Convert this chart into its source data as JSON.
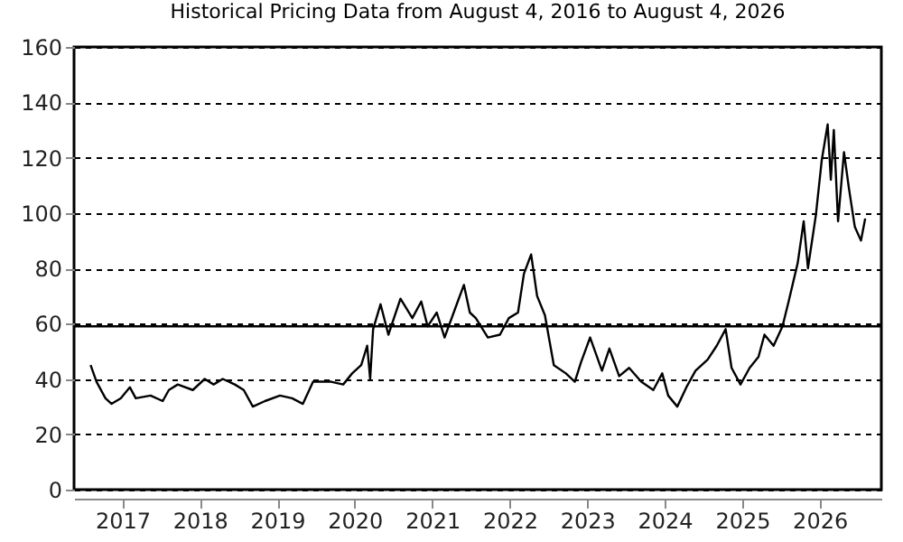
{
  "chart_data": {
    "type": "line",
    "title": "Historical Pricing Data from August 4, 2016 to August 4, 2026",
    "x": [
      "2016-08-04",
      "2016-09-01",
      "2016-10-13",
      "2016-11-11",
      "2016-12-24",
      "2017-02-05",
      "2017-03-05",
      "2017-05-14",
      "2017-07-10",
      "2017-08-08",
      "2017-09-19",
      "2017-11-29",
      "2018-01-24",
      "2018-03-07",
      "2018-04-19",
      "2018-06-15",
      "2018-07-27",
      "2018-09-08",
      "2018-11-04",
      "2019-01-14",
      "2019-03-12",
      "2019-05-02",
      "2019-06-19",
      "2019-09-12",
      "2019-11-08",
      "2019-12-20",
      "2020-02-01",
      "2020-02-29",
      "2020-03-14",
      "2020-03-28",
      "2020-05-02",
      "2020-06-08",
      "2020-08-04",
      "2020-09-29",
      "2020-11-10",
      "2020-12-10",
      "2021-01-22",
      "2021-02-28",
      "2021-05-01",
      "2021-05-30",
      "2021-06-27",
      "2021-07-25",
      "2021-09-20",
      "2021-11-16",
      "2021-12-28",
      "2022-02-09",
      "2022-03-09",
      "2022-04-12",
      "2022-05-10",
      "2022-06-16",
      "2022-07-28",
      "2022-09-23",
      "2022-11-04",
      "2022-12-03",
      "2023-01-15",
      "2023-03-12",
      "2023-04-16",
      "2023-06-01",
      "2023-07-18",
      "2023-09-13",
      "2023-11-09",
      "2023-12-21",
      "2024-01-18",
      "2024-03-01",
      "2024-04-13",
      "2024-05-26",
      "2024-07-22",
      "2024-09-03",
      "2024-10-15",
      "2024-11-12",
      "2024-12-24",
      "2025-02-05",
      "2025-03-19",
      "2025-04-16",
      "2025-05-29",
      "2025-07-10",
      "2025-08-08",
      "2025-09-20",
      "2025-10-18",
      "2025-11-07",
      "2025-12-14",
      "2026-01-11",
      "2026-02-08",
      "2026-02-23",
      "2026-03-09",
      "2026-03-29",
      "2026-04-26",
      "2026-05-19",
      "2026-06-16",
      "2026-07-15",
      "2026-08-04"
    ],
    "series": [
      {
        "color": "#000000",
        "values": [
          45,
          39,
          33,
          31,
          33,
          37,
          33,
          34,
          32,
          36,
          38,
          36,
          40,
          38,
          40,
          38,
          36,
          30,
          32,
          34,
          33,
          31,
          39,
          39,
          38,
          42,
          45,
          52,
          40,
          58,
          67,
          56,
          69,
          62,
          68,
          59,
          64,
          55,
          68,
          74,
          64,
          62,
          55,
          56,
          62,
          64,
          78,
          85,
          70,
          63,
          45,
          42,
          39,
          46,
          55,
          43,
          51,
          41,
          44,
          39,
          36,
          42,
          34,
          30,
          37,
          43,
          47,
          52,
          58,
          44,
          38,
          44,
          48,
          56,
          52,
          59,
          68,
          82,
          97,
          80,
          99,
          119,
          132,
          112,
          130,
          97,
          122,
          109,
          95,
          90,
          98
        ]
      }
    ],
    "xlim": [
      "2016-05-18",
      "2026-10-19"
    ],
    "xticks": [
      "2017",
      "2018",
      "2019",
      "2020",
      "2021",
      "2022",
      "2023",
      "2024",
      "2025",
      "2026"
    ],
    "ylim": [
      0,
      160
    ],
    "yticks": [
      0,
      20,
      40,
      60,
      80,
      100,
      120,
      140,
      160
    ],
    "grid": "y",
    "ref_lines": [
      {
        "axis": "y",
        "value": 59,
        "color": "#000000",
        "line_style": "solid"
      }
    ]
  }
}
